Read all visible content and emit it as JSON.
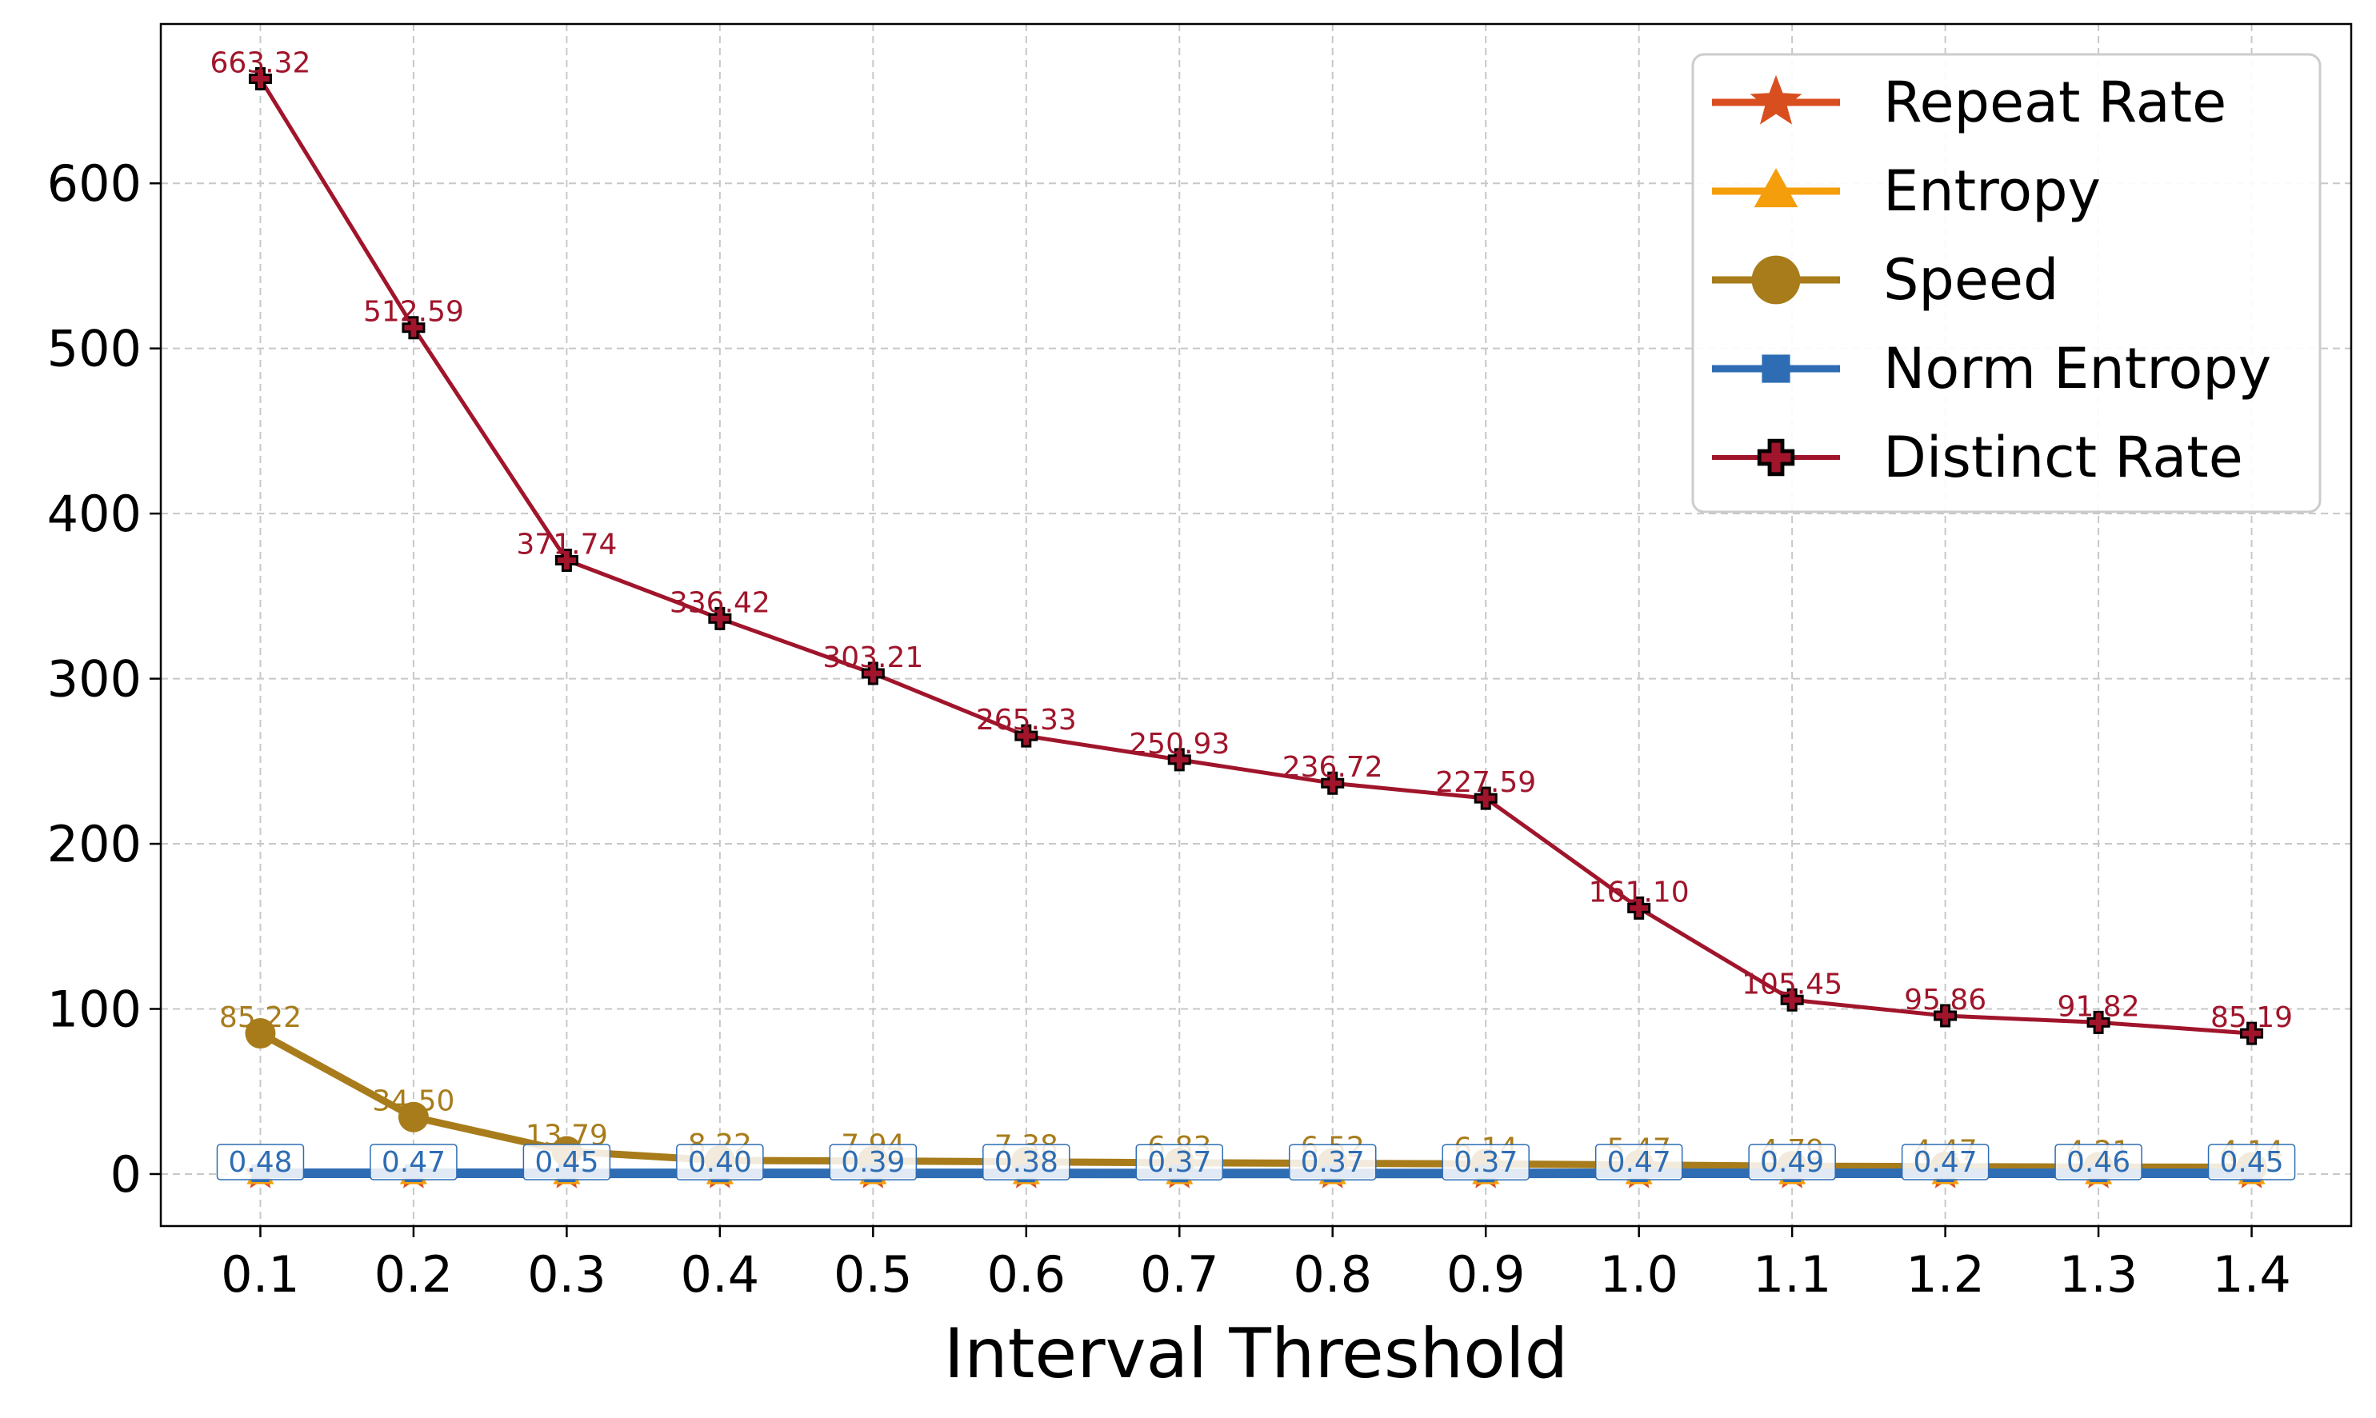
{
  "chart_data": {
    "type": "line",
    "xlabel": "Interval Threshold",
    "ylabel": "",
    "x": [
      0.1,
      0.2,
      0.3,
      0.4,
      0.5,
      0.6,
      0.7,
      0.8,
      0.9,
      1.0,
      1.1,
      1.2,
      1.3,
      1.4
    ],
    "x_tick_labels": [
      "0.1",
      "0.2",
      "0.3",
      "0.4",
      "0.5",
      "0.6",
      "0.7",
      "0.8",
      "0.9",
      "1.0",
      "1.1",
      "1.2",
      "1.3",
      "1.4"
    ],
    "y_ticks": [
      0,
      100,
      200,
      300,
      400,
      500,
      600
    ],
    "y_tick_labels": [
      "0",
      "100",
      "200",
      "300",
      "400",
      "500",
      "600"
    ],
    "xlim": [
      0.035,
      1.465
    ],
    "ylim": [
      -31.5,
      696.5
    ],
    "grid": true,
    "legend_position": "top-right",
    "series": [
      {
        "name": "Repeat Rate",
        "color": "#D94E1F",
        "marker": "star",
        "values": [
          0,
          0,
          0,
          0,
          0,
          0,
          0,
          0,
          0,
          0,
          0,
          0,
          0,
          0
        ],
        "labels": []
      },
      {
        "name": "Entropy",
        "color": "#F59E0B",
        "marker": "triangle",
        "values": [
          0,
          0,
          0,
          0,
          0,
          0,
          0,
          0,
          0,
          0,
          0,
          0,
          0,
          0
        ],
        "labels": []
      },
      {
        "name": "Speed",
        "color": "#A87C1B",
        "marker": "circle",
        "values": [
          85.22,
          34.5,
          13.79,
          8.22,
          7.94,
          7.38,
          6.83,
          6.52,
          6.14,
          5.47,
          4.79,
          4.47,
          4.21,
          4.14
        ],
        "labels": [
          "85.22",
          "34.50",
          "13.79",
          "8.22",
          "7.94",
          "7.38",
          "6.83",
          "6.52",
          "6.14",
          "5.47",
          "4.79",
          "4.47",
          "4.21",
          "4.14"
        ]
      },
      {
        "name": "Norm Entropy",
        "color": "#2E6DB4",
        "marker": "square",
        "values": [
          0.48,
          0.47,
          0.45,
          0.4,
          0.39,
          0.38,
          0.37,
          0.37,
          0.37,
          0.47,
          0.49,
          0.47,
          0.46,
          0.45
        ],
        "labels": [
          "0.48",
          "0.47",
          "0.45",
          "0.40",
          "0.39",
          "0.38",
          "0.37",
          "0.37",
          "0.37",
          "0.47",
          "0.49",
          "0.47",
          "0.46",
          "0.45"
        ]
      },
      {
        "name": "Distinct Rate",
        "color": "#A0152B",
        "marker": "plus",
        "values": [
          663.32,
          512.59,
          371.74,
          336.42,
          303.21,
          265.33,
          250.93,
          236.72,
          227.59,
          161.1,
          105.45,
          95.86,
          91.82,
          85.19
        ],
        "labels": [
          "663.32",
          "512.59",
          "371.74",
          "336.42",
          "303.21",
          "265.33",
          "250.93",
          "236.72",
          "227.59",
          "161.10",
          "105.45",
          "95.86",
          "91.82",
          "85.19"
        ]
      }
    ]
  }
}
